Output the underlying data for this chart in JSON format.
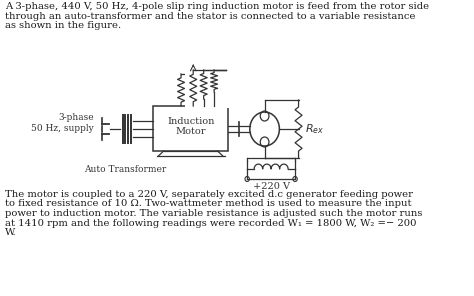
{
  "bg_color": "#ffffff",
  "text_color": "#1a1a1a",
  "title_lines": [
    "A 3-phase, 440 V, 50 Hz, 4-pole slip ring induction motor is feed from the rotor side",
    "through an auto-transformer and the stator is connected to a variable resistance",
    "as shown in the figure."
  ],
  "bottom_lines": [
    "The motor is coupled to a 220 V, separately excited d.c generator feeding power",
    "to fixed resistance of 10 Ω. Two-wattmeter method is used to measure the input",
    "power to induction motor. The variable resistance is adjusted such the motor runs",
    "at 1410 rpm and the following readings were recorded W₁ = 1800 W, W₂ =− 200",
    "W."
  ],
  "label_3phase": "3-phase\n50 Hz, supply",
  "label_auto": "Auto Transformer",
  "label_motor": "Induction\nMotor",
  "label_R": "$R_{ex}$",
  "label_voltage": "+220 V",
  "font_size_text": 7.2,
  "font_size_label": 6.5
}
